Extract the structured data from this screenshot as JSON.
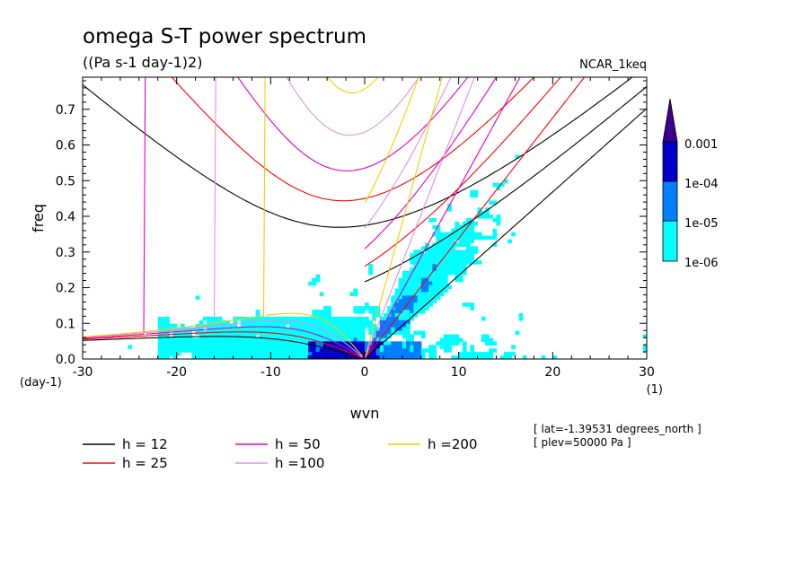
{
  "chart_data": {
    "type": "heatmap",
    "title": "omega S-T power spectrum",
    "subtitle": "((Pa s-1 day-1)2)",
    "dataset_label": "NCAR_1keq",
    "xlabel": "wvn",
    "ylabel": "freq",
    "x_unit_label": "(1)",
    "y_unit_label": "(day-1)",
    "xlim": [
      -30,
      30
    ],
    "ylim": [
      0,
      0.8
    ],
    "x_ticks": [
      -30,
      -20,
      -10,
      0,
      10,
      20,
      30
    ],
    "x_tick_labels": [
      "-30",
      "-20",
      "-10",
      "0",
      "10",
      "20",
      "30"
    ],
    "y_ticks": [
      0.0,
      0.1,
      0.2,
      0.3,
      0.4,
      0.5,
      0.6,
      0.7
    ],
    "y_tick_labels": [
      "0.0",
      "0.1",
      "0.2",
      "0.3",
      "0.4",
      "0.5",
      "0.6",
      "0.7"
    ],
    "colorbar": {
      "levels": [
        "1e-06",
        "1e-05",
        "1e-04",
        "0.001"
      ],
      "colors": [
        "#00ffff",
        "#0080ff",
        "#0000c8",
        "#3c0090"
      ]
    },
    "contour_colors": {
      "background": "#ffffff"
    },
    "dispersion_curves": [
      {
        "label": "h = 12",
        "h": 12,
        "color": "#000000"
      },
      {
        "label": "h = 25",
        "h": 25,
        "color": "#ff0000"
      },
      {
        "label": "h = 50",
        "h": 50,
        "color": "#e000c8"
      },
      {
        "label": "h =100",
        "h": 100,
        "color": "#e090e0"
      },
      {
        "label": "h =200",
        "h": 200,
        "color": "#f0d000"
      }
    ],
    "annotations": [
      "[ lat=-1.39531 degrees_north ]",
      "[ plev=50000 Pa ]"
    ]
  }
}
